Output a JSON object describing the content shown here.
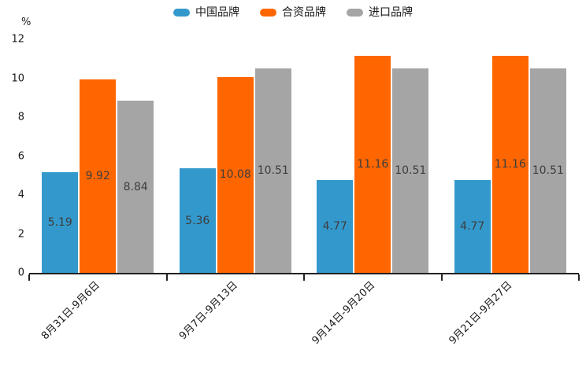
{
  "chart_data": {
    "type": "bar",
    "title": "",
    "xlabel": "",
    "ylabel": "%",
    "categories": [
      "8月31日-9月6日",
      "9月7日-9月13日",
      "9月14日-9月20日",
      "9月21日-9月27日"
    ],
    "series": [
      {
        "name": "中国品牌",
        "color": "#3399cc",
        "values": [
          5.19,
          5.36,
          4.77,
          4.77
        ]
      },
      {
        "name": "合资品牌",
        "color": "#ff6600",
        "values": [
          9.92,
          10.08,
          11.16,
          11.16
        ]
      },
      {
        "name": "进口品牌",
        "color": "#a5a5a5",
        "values": [
          8.84,
          10.51,
          10.51,
          10.51
        ]
      }
    ],
    "value_labels": [
      "5.19",
      "9.92",
      "8.84",
      "5.36",
      "10.08",
      "10.51",
      "4.77",
      "11.16",
      "10.51",
      "4.77",
      "11.16",
      "10.51"
    ],
    "ylim": [
      0,
      12
    ],
    "yticks": [
      "0",
      "2",
      "4",
      "6",
      "8",
      "10",
      "12"
    ],
    "grid": false,
    "legend_position": "top-center",
    "colors": {
      "axis_line": "#222222",
      "axis_text": "#1a1a1a",
      "value_label_text": "#3d3d3d",
      "background": "#ffffff"
    }
  }
}
